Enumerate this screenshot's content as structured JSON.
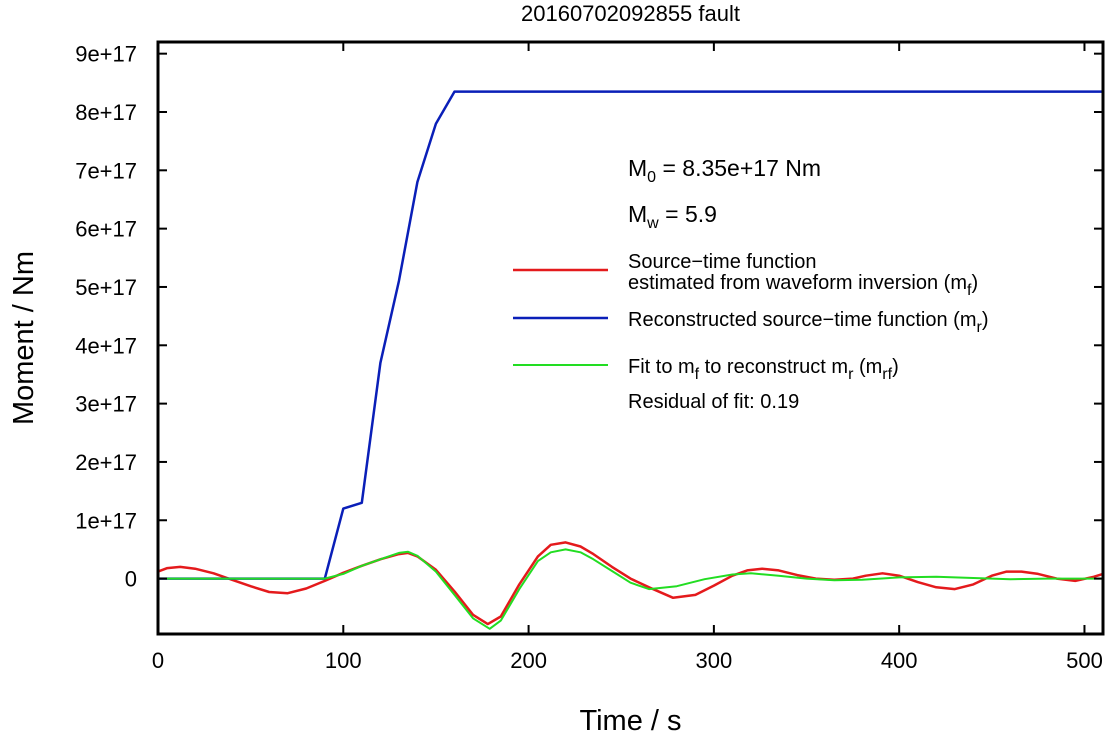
{
  "chart_data": {
    "type": "line",
    "title": "20160702092855 fault",
    "xlabel": "Time / s",
    "ylabel": "Moment / Nm",
    "xlim": [
      0,
      510
    ],
    "ylim": [
      -9.5e+16,
      9.2e+17
    ],
    "x_ticks": [
      0,
      100,
      200,
      300,
      400,
      500
    ],
    "x_tick_labels": [
      "0",
      "100",
      "200",
      "300",
      "400",
      "500"
    ],
    "y_ticks": [
      0,
      1e+17,
      2e+17,
      3e+17,
      4e+17,
      5e+17,
      6e+17,
      7e+17,
      8e+17,
      9e+17
    ],
    "y_tick_labels": [
      "0",
      "1e+17",
      "2e+17",
      "3e+17",
      "4e+17",
      "5e+17",
      "6e+17",
      "7e+17",
      "8e+17",
      "9e+17"
    ],
    "grid": false,
    "annotations": {
      "m0": {
        "symbol": "M",
        "sub": "0",
        "text": " = 8.35e+17 Nm"
      },
      "mw": {
        "symbol": "M",
        "sub": "w",
        "text": " = 5.9"
      },
      "residual": "Residual of fit: 0.19"
    },
    "series": [
      {
        "key": "mf",
        "color": "#e41a1c",
        "label_lines": [
          "Source−time function",
          "estimated from waveform inversion (m",
          "f",
          ")"
        ],
        "x": [
          0,
          5,
          12,
          20,
          30,
          40,
          50,
          60,
          70,
          80,
          90,
          100,
          110,
          120,
          130,
          135,
          140,
          150,
          160,
          170,
          178,
          185,
          195,
          205,
          212,
          220,
          228,
          235,
          245,
          255,
          265,
          278,
          290,
          300,
          310,
          318,
          326,
          335,
          345,
          355,
          365,
          375,
          382,
          391,
          400,
          410,
          420,
          430,
          440,
          450,
          458,
          466,
          475,
          485,
          495,
          505,
          510
        ],
        "y": [
          1.2e+16,
          1.8e+16,
          2e+16,
          1.7e+16,
          9000000000000000.0,
          -2000000000000000.0,
          -1.3e+16,
          -2.3e+16,
          -2.5e+16,
          -1.7e+16,
          -4000000000000000.0,
          1e+16,
          2.2e+16,
          3.3e+16,
          4.2e+16,
          4.4e+16,
          3.8e+16,
          1.5e+16,
          -2.2e+16,
          -6.2e+16,
          -7.8e+16,
          -6.5e+16,
          -1e+16,
          3.8e+16,
          5.8e+16,
          6.2e+16,
          5.5e+16,
          4.2e+16,
          2e+16,
          0,
          -1.5e+16,
          -3.3e+16,
          -2.8e+16,
          -1.2e+16,
          5000000000000000.0,
          1.4e+16,
          1.7e+16,
          1.4e+16,
          6000000000000000.0,
          0,
          -2000000000000000.0,
          0,
          5000000000000000.0,
          9000000000000000.0,
          5000000000000000.0,
          -6000000000000000.0,
          -1.5e+16,
          -1.8e+16,
          -1e+16,
          5000000000000000.0,
          1.2e+16,
          1.2e+16,
          8000000000000000.0,
          0,
          -4000000000000000.0,
          3000000000000000.0,
          8000000000000000.0
        ]
      },
      {
        "key": "mr",
        "color": "#0a1fb8",
        "label_lines": [
          "Reconstructed source−time function (m",
          "r",
          ")"
        ],
        "x": [
          0,
          90,
          100,
          110,
          120,
          130,
          140,
          150,
          160,
          510
        ],
        "y": [
          0,
          0,
          1.2e+17,
          1.3e+17,
          3.7e+17,
          5.1e+17,
          6.8e+17,
          7.8e+17,
          8.35e+17,
          8.35e+17
        ]
      },
      {
        "key": "mrf",
        "color": "#22dd22",
        "label_lines": [
          "Fit to m",
          "f",
          " to reconstruct m",
          "r",
          " (m",
          "rf",
          ")"
        ],
        "x": [
          0,
          80,
          90,
          100,
          110,
          120,
          130,
          135,
          140,
          150,
          160,
          170,
          179,
          185,
          195,
          205,
          212,
          220,
          228,
          235,
          245,
          255,
          265,
          280,
          295,
          310,
          320,
          335,
          350,
          365,
          380,
          400,
          420,
          440,
          460,
          480,
          500,
          510
        ],
        "y": [
          0,
          0,
          0,
          8000000000000000.0,
          2.2e+16,
          3.3e+16,
          4.4e+16,
          4.6e+16,
          3.9e+16,
          1.2e+16,
          -2.8e+16,
          -6.8e+16,
          -8.6e+16,
          -7.2e+16,
          -1.8e+16,
          3e+16,
          4.5e+16,
          5e+16,
          4.5e+16,
          3.3e+16,
          1.3e+16,
          -7000000000000000.0,
          -1.8e+16,
          -1.3e+16,
          -1000000000000000.0,
          7000000000000000.0,
          9000000000000000.0,
          5000000000000000.0,
          0,
          -3000000000000000.0,
          -2000000000000000.0,
          2000000000000000.0,
          3000000000000000.0,
          1000000000000000.0,
          -1000000000000000.0,
          0,
          0,
          0
        ]
      }
    ]
  }
}
